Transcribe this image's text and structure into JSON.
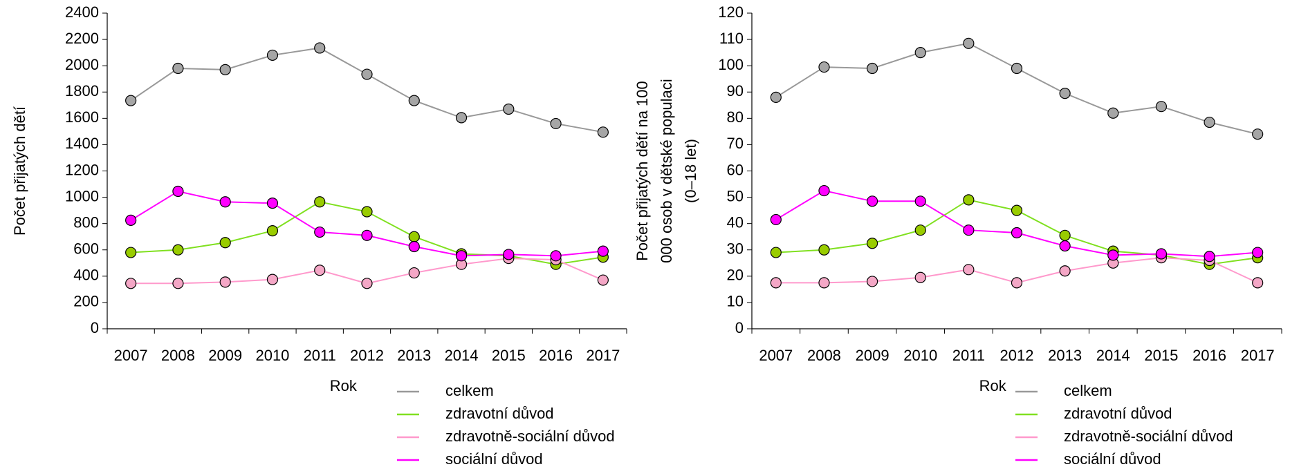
{
  "chart_data": [
    {
      "type": "line",
      "xlabel": "Rok",
      "ylabel": [
        "Počet přijatých dětí"
      ],
      "categories": [
        "2007",
        "2008",
        "2009",
        "2010",
        "2011",
        "2012",
        "2013",
        "2014",
        "2015",
        "2016",
        "2017"
      ],
      "ylim": [
        0,
        2400
      ],
      "yticks": [
        0,
        200,
        400,
        600,
        800,
        1000,
        1200,
        1400,
        1600,
        1800,
        2000,
        2200,
        2400
      ],
      "series": [
        {
          "name": "celkem",
          "color": "#999999",
          "values": [
            1735,
            1980,
            1970,
            2080,
            2135,
            1935,
            1735,
            1605,
            1670,
            1560,
            1495
          ]
        },
        {
          "name": "zdravotní důvod",
          "color": "#80e020",
          "values": [
            580,
            600,
            655,
            745,
            965,
            890,
            700,
            570,
            555,
            490,
            545
          ]
        },
        {
          "name": "zdravotně-sociální důvod",
          "color": "#ff99cc",
          "values": [
            345,
            345,
            355,
            375,
            445,
            345,
            425,
            490,
            535,
            525,
            370
          ]
        },
        {
          "name": "sociální důvod",
          "color": "#ff00ff",
          "values": [
            825,
            1045,
            965,
            955,
            735,
            710,
            625,
            555,
            565,
            555,
            590
          ]
        }
      ]
    },
    {
      "type": "line",
      "xlabel": "Rok",
      "ylabel": [
        "Počet přijatých  dětí na 100",
        "000 osob v dětské populaci",
        "(0–18 let)"
      ],
      "categories": [
        "2007",
        "2008",
        "2009",
        "2010",
        "2011",
        "2012",
        "2013",
        "2014",
        "2015",
        "2016",
        "2017"
      ],
      "ylim": [
        0,
        120
      ],
      "yticks": [
        0,
        10,
        20,
        30,
        40,
        50,
        60,
        70,
        80,
        90,
        100,
        110,
        120
      ],
      "series": [
        {
          "name": "celkem",
          "color": "#999999",
          "values": [
            88,
            99.5,
            99,
            105,
            108.5,
            99,
            89.5,
            82,
            84.5,
            78.5,
            74
          ]
        },
        {
          "name": "zdravotní důvod",
          "color": "#80e020",
          "values": [
            29,
            30,
            32.5,
            37.5,
            49,
            45,
            35.5,
            29.5,
            28,
            24.5,
            27
          ]
        },
        {
          "name": "zdravotně-sociální důvod",
          "color": "#ff99cc",
          "values": [
            17.5,
            17.5,
            18,
            19.5,
            22.5,
            17.5,
            22,
            25,
            27,
            26,
            17.5
          ]
        },
        {
          "name": "sociální důvod",
          "color": "#ff00ff",
          "values": [
            41.5,
            52.5,
            48.5,
            48.5,
            37.5,
            36.5,
            31.5,
            28,
            28.5,
            27.5,
            29
          ]
        }
      ]
    }
  ]
}
